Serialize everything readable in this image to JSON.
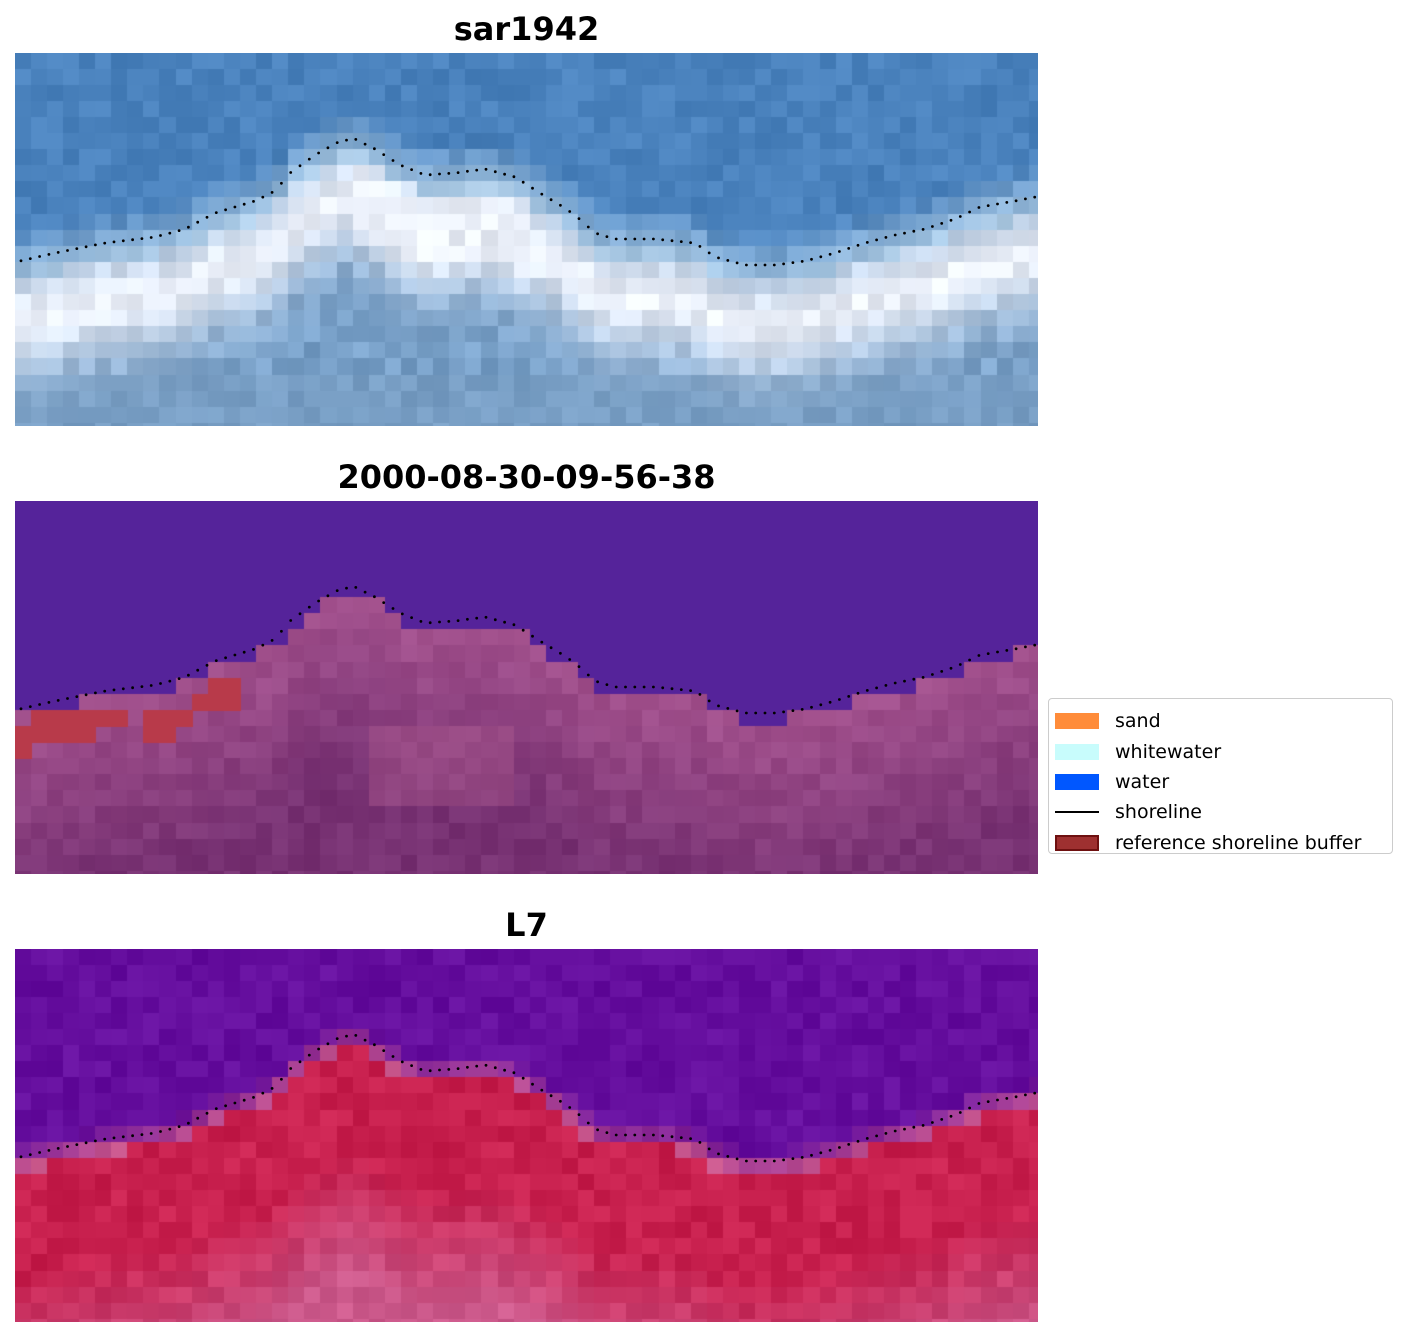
{
  "panels": [
    {
      "title": "sar1942",
      "style": "rgb"
    },
    {
      "title": "2000-08-30-09-56-38",
      "style": "classified"
    },
    {
      "title": "L7",
      "style": "index"
    }
  ],
  "legend": {
    "items": [
      {
        "label": "sand",
        "kind": "patch",
        "color": "#ff8c3a"
      },
      {
        "label": "whitewater",
        "kind": "patch",
        "color": "#c8fcfc"
      },
      {
        "label": "water",
        "kind": "patch",
        "color": "#0057ff"
      },
      {
        "label": "shoreline",
        "kind": "line",
        "color": "#000000"
      },
      {
        "label": "reference shoreline buffer",
        "kind": "patch",
        "color": "#9e3030",
        "edge": "#6e1010"
      }
    ]
  },
  "colors": {
    "sky_water": "#4a82bd",
    "classified_water": "#55239a",
    "classified_land": "#a4528e",
    "buffer": "#b83a4a",
    "index_water": "#650e9e",
    "index_land": "#c8204e"
  }
}
